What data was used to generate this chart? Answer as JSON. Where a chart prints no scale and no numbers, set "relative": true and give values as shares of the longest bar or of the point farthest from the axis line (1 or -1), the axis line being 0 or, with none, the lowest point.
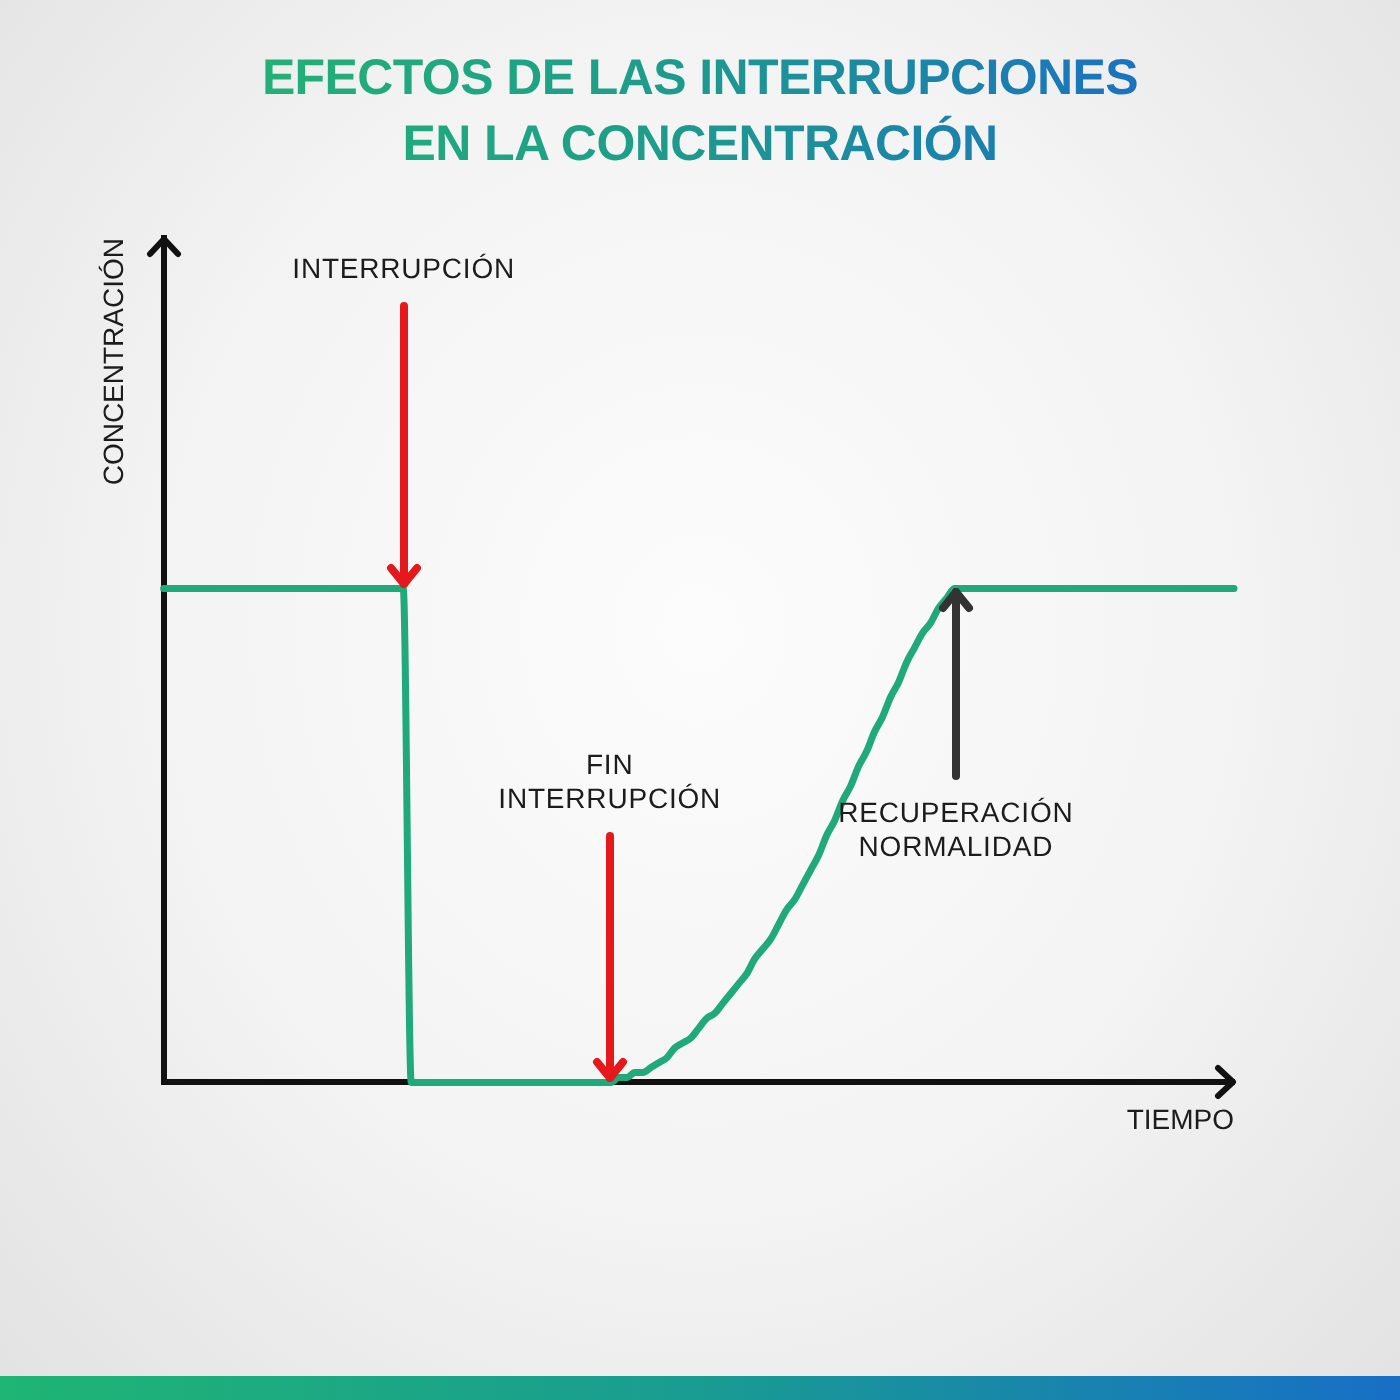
{
  "chart_data": {
    "type": "line",
    "title": "EFECTOS DE LAS INTERRUPCIONES EN LA CONCENTRACIÓN",
    "xlabel": "TIEMPO",
    "ylabel": "CONCENTRACIÓN",
    "relative": true,
    "categories": [
      null,
      null,
      null,
      null,
      null,
      null,
      null,
      null,
      null,
      null,
      null,
      null,
      null,
      null,
      null,
      null,
      null,
      null,
      null,
      null,
      null,
      null,
      null,
      null,
      null,
      null,
      null,
      null,
      null,
      null,
      null,
      null,
      null,
      null,
      null,
      null,
      null,
      null,
      null,
      null,
      null,
      null,
      null,
      null,
      null,
      null,
      null,
      null,
      null,
      null,
      null,
      null,
      null,
      null,
      null,
      null,
      null,
      null,
      null,
      null,
      null,
      null,
      null,
      null,
      null,
      null,
      null,
      null,
      null,
      null,
      null,
      null,
      null,
      null,
      null,
      null,
      null,
      null,
      null,
      null,
      null,
      null,
      null,
      null,
      null,
      null,
      null,
      null,
      null,
      null,
      null,
      null,
      null,
      null,
      null,
      null,
      null,
      null,
      null,
      null,
      null,
      null,
      null,
      null,
      null,
      null,
      null,
      null,
      null,
      null,
      null,
      null,
      null,
      null,
      null,
      null,
      null,
      null,
      null,
      null,
      null,
      null,
      null,
      null,
      null,
      null,
      null,
      null,
      null,
      null,
      null,
      null,
      null,
      null,
      null
    ],
    "values": [
      1,
      1,
      1,
      1,
      1,
      1,
      1,
      1,
      1,
      1,
      1,
      1,
      1,
      1,
      1,
      1,
      1,
      1,
      1,
      1,
      1,
      1,
      1,
      1,
      1,
      1,
      1,
      1,
      1,
      1,
      1,
      0,
      0,
      0,
      0,
      0,
      0,
      0,
      0,
      0,
      0,
      0,
      0,
      0,
      0,
      0,
      0,
      0,
      0,
      0,
      0,
      0,
      0,
      0,
      0,
      0,
      0,
      0.01,
      0.01,
      0.02,
      0.02,
      0.03,
      0.04,
      0.05,
      0.07,
      0.08,
      0.09,
      0.11,
      0.13,
      0.14,
      0.16,
      0.18,
      0.2,
      0.22,
      0.25,
      0.27,
      0.29,
      0.32,
      0.35,
      0.37,
      0.4,
      0.43,
      0.46,
      0.5,
      0.53,
      0.57,
      0.6,
      0.64,
      0.67,
      0.71,
      0.74,
      0.78,
      0.81,
      0.85,
      0.88,
      0.91,
      0.93,
      0.96,
      0.98,
      1,
      1,
      1,
      1,
      1,
      1,
      1,
      1,
      1,
      1,
      1,
      1,
      1,
      1,
      1,
      1,
      1,
      1,
      1,
      1,
      1,
      1,
      1,
      1,
      1,
      1,
      1,
      1,
      1,
      1,
      1,
      1,
      1,
      1,
      1,
      1
    ],
    "color": "#20a97a",
    "annotations": [
      {
        "text": "INTERRUPCIÓN",
        "y": 1
      },
      {
        "text": "FIN INTERRUPCIÓN",
        "y": 0
      },
      {
        "text": "RECUPERACIÓN NORMALIDAD",
        "y": 1
      }
    ],
    "grid": false,
    "legend": false,
    "line_style": "solid"
  }
}
